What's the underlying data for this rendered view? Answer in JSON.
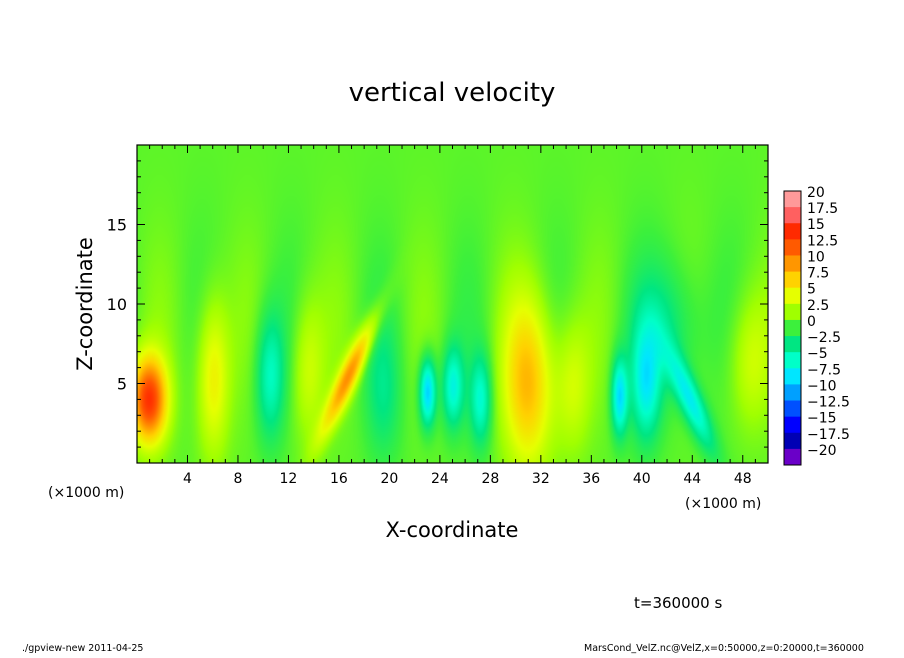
{
  "chart_data": {
    "type": "heatmap",
    "title": "vertical velocity",
    "xlabel": "X-coordinate",
    "ylabel": "Z-coordinate",
    "x_unit": "(×1000 m)",
    "x_unit_right": "(×1000 m)",
    "xlim": [
      0,
      50
    ],
    "ylim": [
      0,
      20
    ],
    "x_ticks": [
      4,
      8,
      12,
      16,
      20,
      24,
      28,
      32,
      36,
      40,
      44,
      48
    ],
    "y_ticks": [
      5,
      10,
      15
    ],
    "colorbar": {
      "levels": [
        20,
        17.5,
        15,
        12.5,
        10,
        7.5,
        5,
        2.5,
        0,
        -2.5,
        -5,
        -7.5,
        -10,
        -12.5,
        -15,
        -17.5,
        -20
      ],
      "labels": [
        "20",
        "17.5",
        "15",
        "12.5",
        "10",
        "7.5",
        "5",
        "2.5",
        "0",
        "−2.5",
        "−5",
        "−7.5",
        "−10",
        "−12.5",
        "−15",
        "−17.5",
        "−20"
      ],
      "colors": [
        "#ff9a9a",
        "#ff6060",
        "#ff2a00",
        "#ff5a00",
        "#ff9600",
        "#ffd200",
        "#e6ff00",
        "#a0ff00",
        "#3cf03c",
        "#00e682",
        "#00ffc8",
        "#00e6ff",
        "#00a0ff",
        "#0050ff",
        "#0000ff",
        "#0000b4",
        "#6a00c8"
      ]
    },
    "features": [
      {
        "x": 0.9,
        "z": 4.0,
        "w": -1,
        "amp": 13.5,
        "sx": 1.0,
        "sz": 1.9,
        "tilt": 0
      },
      {
        "x": 6.0,
        "z": 5.5,
        "w": -1,
        "amp": 5.5,
        "sx": 0.9,
        "sz": 3.5,
        "tilt": 0
      },
      {
        "x": 10.5,
        "z": 5.5,
        "w": -1,
        "amp": -5.5,
        "sx": 0.8,
        "sz": 2.8,
        "tilt": 0
      },
      {
        "x": 13.5,
        "z": 6.0,
        "w": -1,
        "amp": 3.5,
        "sx": 0.9,
        "sz": 3.2,
        "tilt": 0
      },
      {
        "x": 16.8,
        "z": 5.6,
        "w": -1,
        "amp": 9.0,
        "sx": 0.6,
        "sz": 2.6,
        "tilt": 0.55
      },
      {
        "x": 19.5,
        "z": 4.5,
        "w": -1,
        "amp": -3.0,
        "sx": 1.0,
        "sz": 3.0,
        "tilt": 0
      },
      {
        "x": 23.0,
        "z": 4.5,
        "w": -1,
        "amp": -9.5,
        "sx": 0.45,
        "sz": 1.5,
        "tilt": 0
      },
      {
        "x": 25.0,
        "z": 4.8,
        "w": -1,
        "amp": -6.5,
        "sx": 0.6,
        "sz": 1.8,
        "tilt": 0
      },
      {
        "x": 27.2,
        "z": 4.0,
        "w": -1,
        "amp": -6.0,
        "sx": 0.6,
        "sz": 2.0,
        "tilt": 0
      },
      {
        "x": 31.0,
        "z": 5.0,
        "w": -1,
        "amp": 7.5,
        "sx": 1.4,
        "sz": 3.8,
        "tilt": 0
      },
      {
        "x": 34.5,
        "z": 5.0,
        "w": -1,
        "amp": 3.5,
        "sx": 1.0,
        "sz": 3.0,
        "tilt": 0
      },
      {
        "x": 38.2,
        "z": 4.2,
        "w": -1,
        "amp": -8.5,
        "sx": 0.45,
        "sz": 1.7,
        "tilt": 0
      },
      {
        "x": 40.3,
        "z": 5.0,
        "w": -1,
        "amp": -6.5,
        "sx": 0.8,
        "sz": 2.5,
        "tilt": 0
      },
      {
        "x": 43.8,
        "z": 4.0,
        "w": -1,
        "amp": -7.5,
        "sx": 0.7,
        "sz": 2.2,
        "tilt": -0.5
      },
      {
        "x": 42.0,
        "z": 8.5,
        "w": -1,
        "amp": -3.5,
        "sx": 2.0,
        "sz": 3.0,
        "tilt": 0
      },
      {
        "x": 48.5,
        "z": 6.5,
        "w": -1,
        "amp": 3.5,
        "sx": 1.2,
        "sz": 3.0,
        "tilt": 0
      }
    ]
  },
  "footer": {
    "time_label": "t=360000  s",
    "left_caption": "./gpview-new   2011-04-25",
    "right_caption": "MarsCond_VelZ.nc@VelZ,x=0:50000,z=0:20000,t=360000"
  }
}
